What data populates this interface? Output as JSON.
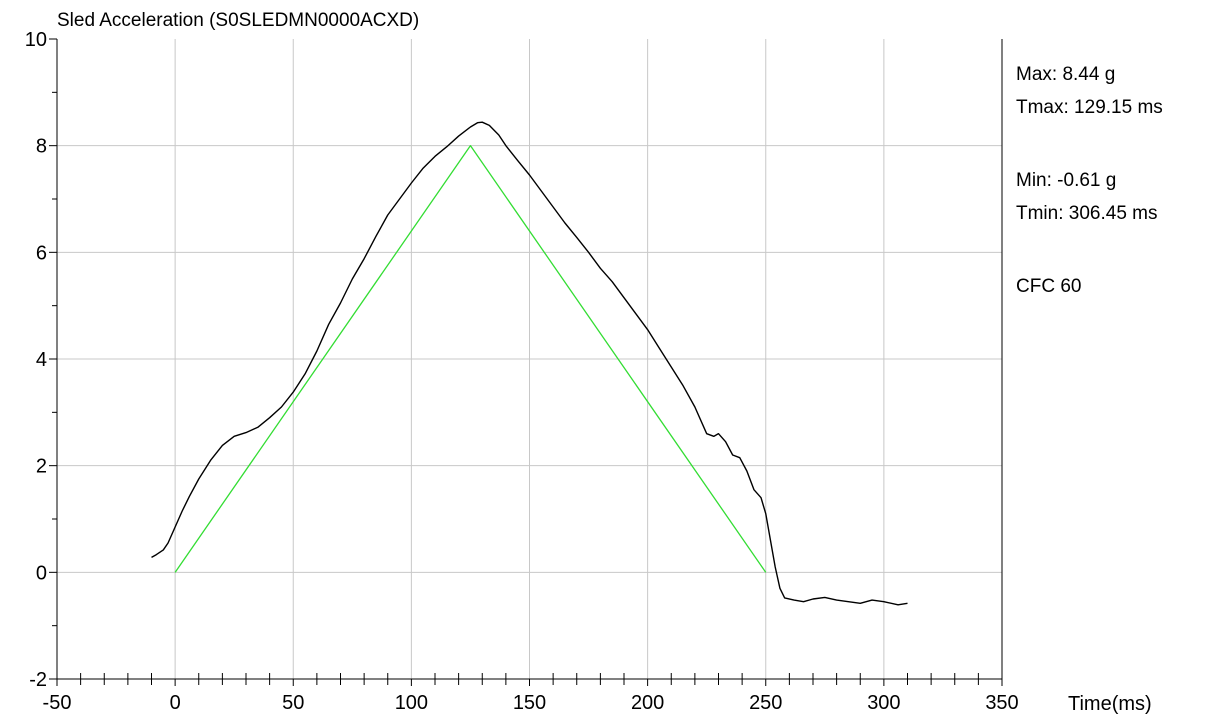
{
  "chart_data": {
    "type": "line",
    "title": "Sled Acceleration (S0SLEDMN0000ACXD)",
    "xlabel": "Time(ms)",
    "ylabel": "",
    "xlim": [
      -50,
      350
    ],
    "ylim": [
      -2,
      10
    ],
    "x_ticks": [
      -50,
      0,
      50,
      100,
      150,
      200,
      250,
      300,
      350
    ],
    "y_ticks": [
      -2,
      0,
      2,
      4,
      6,
      8,
      10
    ],
    "x_minor_step": 10,
    "y_minor_step": 1,
    "grid": true,
    "colors": {
      "measured": "#000000",
      "corridor": "#33dd33",
      "grid": "#c8c8c8"
    },
    "series": [
      {
        "key": "measured",
        "points": [
          [
            -10,
            0.28
          ],
          [
            -8,
            0.33
          ],
          [
            -5,
            0.42
          ],
          [
            -3,
            0.55
          ],
          [
            0,
            0.85
          ],
          [
            3,
            1.15
          ],
          [
            6,
            1.42
          ],
          [
            10,
            1.75
          ],
          [
            15,
            2.1
          ],
          [
            20,
            2.38
          ],
          [
            25,
            2.55
          ],
          [
            30,
            2.62
          ],
          [
            35,
            2.72
          ],
          [
            40,
            2.9
          ],
          [
            45,
            3.1
          ],
          [
            50,
            3.38
          ],
          [
            55,
            3.72
          ],
          [
            60,
            4.15
          ],
          [
            65,
            4.65
          ],
          [
            70,
            5.05
          ],
          [
            75,
            5.5
          ],
          [
            80,
            5.88
          ],
          [
            85,
            6.3
          ],
          [
            90,
            6.7
          ],
          [
            95,
            7.0
          ],
          [
            100,
            7.3
          ],
          [
            105,
            7.58
          ],
          [
            110,
            7.8
          ],
          [
            115,
            7.98
          ],
          [
            120,
            8.18
          ],
          [
            125,
            8.35
          ],
          [
            128,
            8.43
          ],
          [
            130,
            8.44
          ],
          [
            133,
            8.38
          ],
          [
            137,
            8.2
          ],
          [
            140,
            8.0
          ],
          [
            145,
            7.72
          ],
          [
            150,
            7.45
          ],
          [
            155,
            7.15
          ],
          [
            160,
            6.85
          ],
          [
            165,
            6.55
          ],
          [
            170,
            6.28
          ],
          [
            175,
            6.0
          ],
          [
            180,
            5.7
          ],
          [
            185,
            5.45
          ],
          [
            190,
            5.15
          ],
          [
            195,
            4.85
          ],
          [
            200,
            4.55
          ],
          [
            205,
            4.2
          ],
          [
            210,
            3.85
          ],
          [
            215,
            3.5
          ],
          [
            220,
            3.1
          ],
          [
            225,
            2.6
          ],
          [
            228,
            2.55
          ],
          [
            230,
            2.6
          ],
          [
            233,
            2.45
          ],
          [
            236,
            2.2
          ],
          [
            239,
            2.15
          ],
          [
            242,
            1.9
          ],
          [
            245,
            1.55
          ],
          [
            248,
            1.4
          ],
          [
            250,
            1.1
          ],
          [
            252,
            0.6
          ],
          [
            254,
            0.1
          ],
          [
            256,
            -0.3
          ],
          [
            258,
            -0.48
          ],
          [
            262,
            -0.52
          ],
          [
            266,
            -0.55
          ],
          [
            270,
            -0.5
          ],
          [
            275,
            -0.47
          ],
          [
            280,
            -0.52
          ],
          [
            285,
            -0.55
          ],
          [
            290,
            -0.58
          ],
          [
            295,
            -0.52
          ],
          [
            300,
            -0.55
          ],
          [
            306,
            -0.61
          ],
          [
            310,
            -0.58
          ]
        ]
      },
      {
        "key": "corridor",
        "points": [
          [
            0,
            0
          ],
          [
            125,
            8
          ],
          [
            250,
            0
          ]
        ]
      }
    ]
  },
  "stats": {
    "max": "Max: 8.44 g",
    "tmax": "Tmax: 129.15 ms",
    "min": "Min: -0.61 g",
    "tmin": "Tmin: 306.45 ms",
    "cfc": "CFC 60"
  }
}
